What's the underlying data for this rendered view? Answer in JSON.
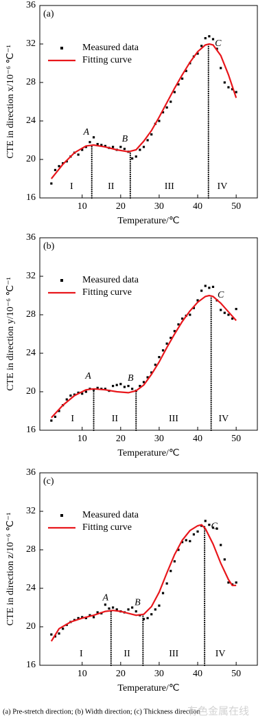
{
  "chart_data": [
    {
      "type": "scatter",
      "panel_label": "(a)",
      "xlabel": "Temperature/℃",
      "ylabel": "CTE in direction x/10⁻⁶ ℃⁻¹",
      "xlim": [
        -1,
        55.5
      ],
      "ylim": [
        16,
        36
      ],
      "xticks": [
        10,
        20,
        30,
        40,
        50
      ],
      "yticks": [
        16,
        20,
        24,
        28,
        32,
        36
      ],
      "legend": "upper left",
      "series": [
        {
          "name": "Measured data",
          "color": "#000000",
          "kind": "scatter",
          "x": [
            2,
            3,
            4,
            5,
            6,
            7,
            8,
            9,
            10,
            11,
            12,
            13,
            14,
            15,
            16,
            17,
            18,
            19,
            20,
            21,
            22,
            23,
            24,
            25,
            26,
            27,
            28,
            29,
            30,
            31,
            32,
            33,
            34,
            35,
            36,
            37,
            38,
            39,
            40,
            41,
            42,
            43,
            44,
            45,
            46,
            47,
            48,
            49,
            50
          ],
          "values": [
            17.5,
            18.9,
            19.3,
            19.6,
            19.8,
            20.3,
            20.7,
            20.5,
            21.0,
            21.3,
            21.8,
            22.3,
            21.6,
            21.5,
            21.4,
            21.2,
            21.3,
            21.0,
            21.3,
            21.1,
            20.8,
            20.1,
            20.3,
            21.0,
            21.3,
            22.0,
            22.6,
            23.7,
            24.0,
            24.9,
            25.4,
            26.0,
            27.0,
            27.8,
            28.4,
            29.2,
            30.0,
            30.7,
            31.0,
            31.8,
            32.6,
            32.8,
            32.5,
            31.5,
            29.5,
            28.0,
            27.5,
            27.3,
            27.0
          ]
        },
        {
          "name": "Fitting curve",
          "color": "#e8161b",
          "kind": "line",
          "x": [
            2,
            5,
            8,
            11,
            13,
            16,
            19,
            22,
            24,
            26,
            28,
            30,
            32,
            34,
            36,
            38,
            40,
            42,
            43,
            44,
            46,
            48,
            50
          ],
          "values": [
            18.0,
            19.5,
            20.7,
            21.4,
            21.5,
            21.3,
            21.0,
            20.8,
            21.0,
            21.9,
            23.0,
            24.4,
            25.9,
            27.4,
            28.8,
            30.1,
            31.2,
            31.9,
            32.0,
            31.9,
            30.8,
            28.8,
            26.4
          ]
        }
      ],
      "markers": [
        {
          "label": "A",
          "x": 12.5,
          "y": 21.5
        },
        {
          "label": "B",
          "x": 22.5,
          "y": 20.8
        },
        {
          "label": "C",
          "x": 42.8,
          "y": 32.0
        }
      ],
      "regions": [
        "I",
        "II",
        "III",
        "IV"
      ]
    },
    {
      "type": "scatter",
      "panel_label": "(b)",
      "xlabel": "Temperature/℃",
      "ylabel": "CTE in direction y/10⁻⁶ ℃⁻¹",
      "xlim": [
        -1,
        55.5
      ],
      "ylim": [
        16,
        36
      ],
      "xticks": [
        10,
        20,
        30,
        40,
        50
      ],
      "yticks": [
        16,
        20,
        24,
        28,
        32,
        36
      ],
      "legend": "upper left",
      "series": [
        {
          "name": "Measured data",
          "color": "#000000",
          "kind": "scatter",
          "x": [
            2,
            3,
            4,
            5,
            6,
            7,
            8,
            9,
            10,
            11,
            12,
            13,
            14,
            15,
            16,
            17,
            18,
            19,
            20,
            21,
            22,
            23,
            24,
            25,
            26,
            27,
            28,
            29,
            30,
            31,
            32,
            33,
            34,
            35,
            36,
            37,
            38,
            39,
            40,
            41,
            42,
            43,
            44,
            45,
            46,
            47,
            48,
            49,
            50
          ],
          "values": [
            17.0,
            17.4,
            18.0,
            18.6,
            19.2,
            19.6,
            19.7,
            19.9,
            19.8,
            20.0,
            20.3,
            20.2,
            20.4,
            20.3,
            20.3,
            20.1,
            20.6,
            20.7,
            20.8,
            20.5,
            20.6,
            20.3,
            20.1,
            20.6,
            21.0,
            21.5,
            22.0,
            22.8,
            23.6,
            24.3,
            25.0,
            25.6,
            26.3,
            27.0,
            27.6,
            27.9,
            28.0,
            28.7,
            29.5,
            30.5,
            31.0,
            30.8,
            30.9,
            29.5,
            28.5,
            28.2,
            28.0,
            27.6,
            28.6
          ]
        },
        {
          "name": "Fitting curve",
          "color": "#e8161b",
          "kind": "line",
          "x": [
            2,
            5,
            8,
            11,
            13,
            16,
            19,
            22,
            24,
            26,
            28,
            30,
            32,
            34,
            36,
            38,
            40,
            42,
            43,
            44,
            46,
            48,
            50
          ],
          "values": [
            17.3,
            18.6,
            19.6,
            20.2,
            20.3,
            20.2,
            20.0,
            19.9,
            20.1,
            20.7,
            21.8,
            23.1,
            24.6,
            26.0,
            27.3,
            28.4,
            29.3,
            29.9,
            30.0,
            29.9,
            29.2,
            28.3,
            27.4
          ]
        }
      ],
      "markers": [
        {
          "label": "A",
          "x": 13,
          "y": 20.3
        },
        {
          "label": "B",
          "x": 24,
          "y": 20.1
        },
        {
          "label": "C",
          "x": 43.5,
          "y": 30.0
        }
      ],
      "regions": [
        "I",
        "II",
        "III",
        "IV"
      ]
    },
    {
      "type": "scatter",
      "panel_label": "(c)",
      "xlabel": "Temperature/℃",
      "ylabel": "CTE in direction z/10⁻⁶ ℃⁻¹",
      "xlim": [
        -1,
        55.5
      ],
      "ylim": [
        16,
        36
      ],
      "xticks": [
        10,
        20,
        30,
        40,
        50
      ],
      "yticks": [
        16,
        20,
        24,
        28,
        32,
        36
      ],
      "legend": "upper left",
      "series": [
        {
          "name": "Measured data",
          "color": "#000000",
          "kind": "scatter",
          "x": [
            2,
            3,
            4,
            5,
            6,
            7,
            8,
            9,
            10,
            11,
            12,
            13,
            14,
            15,
            16,
            17,
            18,
            19,
            20,
            21,
            22,
            23,
            24,
            25,
            26,
            27,
            28,
            29,
            30,
            31,
            32,
            33,
            34,
            35,
            36,
            37,
            38,
            39,
            40,
            41,
            42,
            43,
            44,
            45,
            46,
            47,
            48,
            49,
            50
          ],
          "values": [
            19.2,
            19.0,
            19.3,
            19.8,
            20.2,
            20.5,
            20.7,
            20.9,
            21.0,
            20.9,
            21.2,
            21.0,
            21.5,
            21.4,
            22.3,
            21.9,
            22.0,
            21.8,
            21.6,
            21.5,
            21.8,
            22.0,
            21.6,
            21.2,
            20.8,
            20.9,
            21.3,
            21.8,
            22.2,
            23.5,
            24.5,
            25.8,
            26.8,
            28.0,
            28.8,
            29.0,
            28.9,
            29.6,
            29.9,
            30.5,
            31.0,
            30.6,
            30.3,
            30.2,
            28.5,
            27.0,
            24.6,
            24.4,
            24.6
          ]
        },
        {
          "name": "Fitting curve",
          "color": "#e8161b",
          "kind": "line",
          "x": [
            2,
            4,
            7,
            10,
            13,
            16,
            18,
            20,
            22,
            24,
            26,
            28,
            30,
            32,
            34,
            36,
            38,
            40,
            41,
            42,
            44,
            46,
            48,
            49,
            50
          ],
          "values": [
            18.5,
            19.8,
            20.5,
            20.9,
            21.2,
            21.6,
            21.7,
            21.6,
            21.4,
            21.2,
            21.3,
            22.1,
            23.6,
            25.6,
            27.5,
            29.0,
            30.0,
            30.5,
            30.6,
            30.2,
            28.6,
            26.6,
            24.9,
            24.3,
            24.3
          ]
        }
      ],
      "markers": [
        {
          "label": "A",
          "x": 17.5,
          "y": 21.7
        },
        {
          "label": "B",
          "x": 25.8,
          "y": 21.2
        },
        {
          "label": "C",
          "x": 41.8,
          "y": 30.4
        }
      ],
      "regions": [
        "I",
        "II",
        "III",
        "IV"
      ]
    }
  ],
  "caption": "(a) Pre-stretch direction; (b) Width direction; (c) Thickness direction",
  "watermark": "有色金属在线"
}
